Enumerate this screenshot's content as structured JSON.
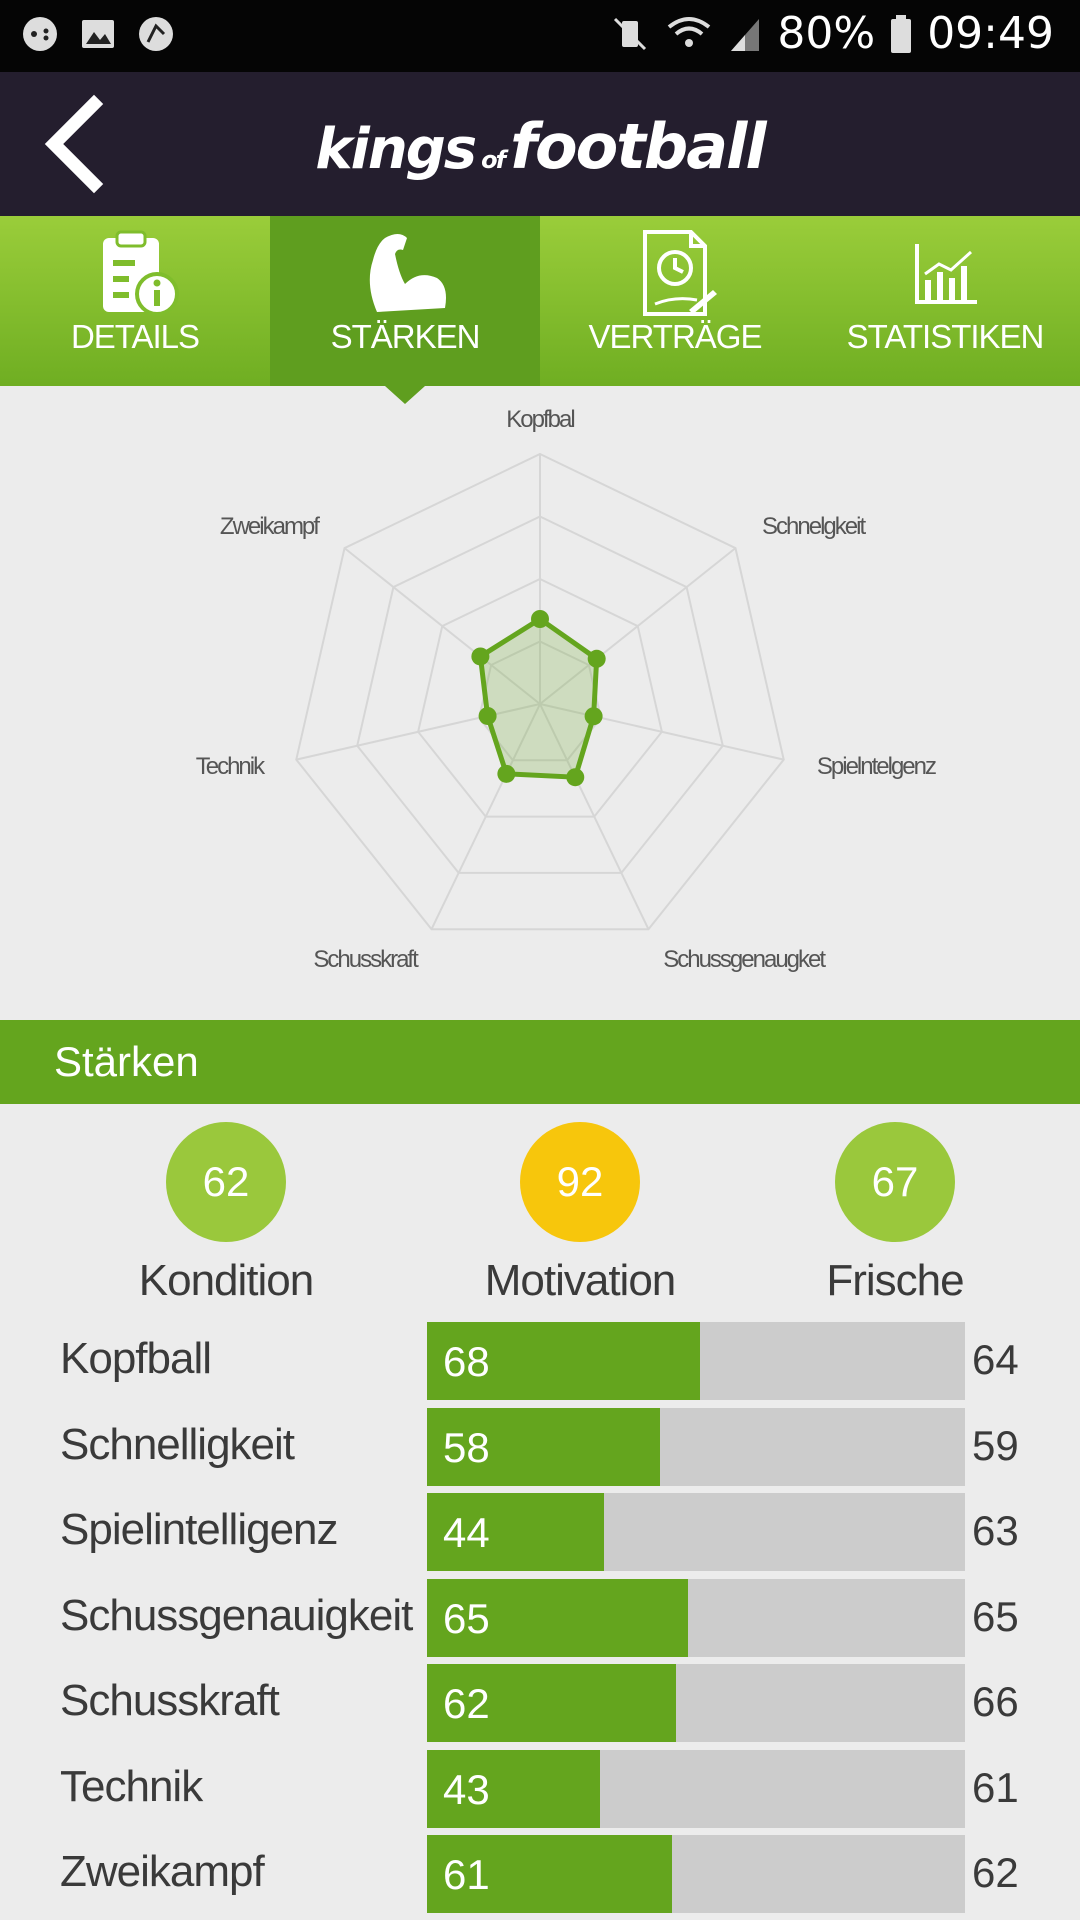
{
  "status_bar": {
    "battery": "80%",
    "time": "09:49"
  },
  "app": {
    "brand_main": "kings",
    "brand_of": "of",
    "brand_football": "football"
  },
  "tabs": [
    {
      "label": "DETAILS",
      "icon": "document-info-icon",
      "active": false
    },
    {
      "label": "STÄRKEN",
      "icon": "flexed-bicep-icon",
      "active": true
    },
    {
      "label": "VERTRÄGE",
      "icon": "contract-clock-icon",
      "active": false
    },
    {
      "label": "STATISTIKEN",
      "icon": "bar-chart-icon",
      "active": false
    }
  ],
  "chart_data": {
    "type": "radar",
    "axes": [
      "Kopfbal",
      "Schnelgkeit",
      "Spielntelgenz",
      "Schussgenaugket",
      "Schusskraft",
      "Technik",
      "Zweikampf"
    ],
    "values": [
      68,
      58,
      44,
      65,
      62,
      43,
      61
    ],
    "range": [
      0,
      200
    ],
    "rings": 4,
    "colors": {
      "fill": "#64a51e",
      "grid": "#d6d6d6"
    }
  },
  "section": {
    "title": "Stärken"
  },
  "summary": [
    {
      "value": "62",
      "label": "Kondition",
      "color": "#9ac83c"
    },
    {
      "value": "92",
      "label": "Motivation",
      "color": "#f7c60c"
    },
    {
      "value": "67",
      "label": "Frische",
      "color": "#9ac83c"
    }
  ],
  "attributes": [
    {
      "name": "Kopfball",
      "value": 68,
      "potential": 64
    },
    {
      "name": "Schnelligkeit",
      "value": 58,
      "potential": 59
    },
    {
      "name": "Spielintelligenz",
      "value": 44,
      "potential": 63
    },
    {
      "name": "Schussgenauigkeit",
      "value": 65,
      "potential": 65
    },
    {
      "name": "Schusskraft",
      "value": 62,
      "potential": 66
    },
    {
      "name": "Technik",
      "value": 43,
      "potential": 61
    },
    {
      "name": "Zweikampf",
      "value": 61,
      "potential": 62
    }
  ],
  "colors": {
    "accent": "#64a51e",
    "appbar": "#241e2e",
    "bar_track": "#cccccc"
  }
}
